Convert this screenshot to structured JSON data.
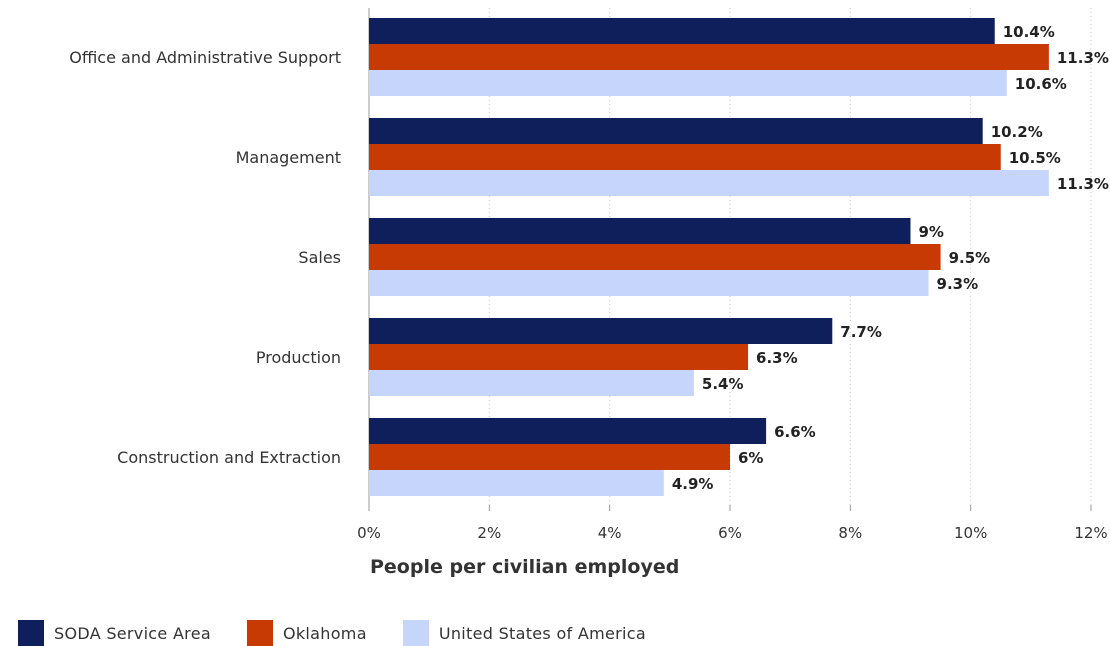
{
  "chart_data": {
    "type": "bar",
    "orientation": "horizontal",
    "categories": [
      "Office and Administrative Support",
      "Management",
      "Sales",
      "Production",
      "Construction and Extraction"
    ],
    "series": [
      {
        "name": "SODA Service Area",
        "color": "#0f1f5c",
        "values": [
          10.4,
          10.2,
          9,
          7.7,
          6.6
        ],
        "labels": [
          "10.4%",
          "10.2%",
          "9%",
          "7.7%",
          "6.6%"
        ]
      },
      {
        "name": "Oklahoma",
        "color": "#c73a03",
        "values": [
          11.3,
          10.5,
          9.5,
          6.3,
          6
        ],
        "labels": [
          "11.3%",
          "10.5%",
          "9.5%",
          "6.3%",
          "6%"
        ]
      },
      {
        "name": "United States of America",
        "color": "#c5d5fc",
        "values": [
          10.6,
          11.3,
          9.3,
          5.4,
          4.9
        ],
        "labels": [
          "10.6%",
          "11.3%",
          "9.3%",
          "5.4%",
          "4.9%"
        ]
      }
    ],
    "xlabel": "People per civilian employed",
    "xlim": [
      0,
      12
    ],
    "ticks": [
      "0%",
      "2%",
      "4%",
      "6%",
      "8%",
      "10%",
      "12%"
    ],
    "grid": true,
    "legend": "bottom-left"
  }
}
